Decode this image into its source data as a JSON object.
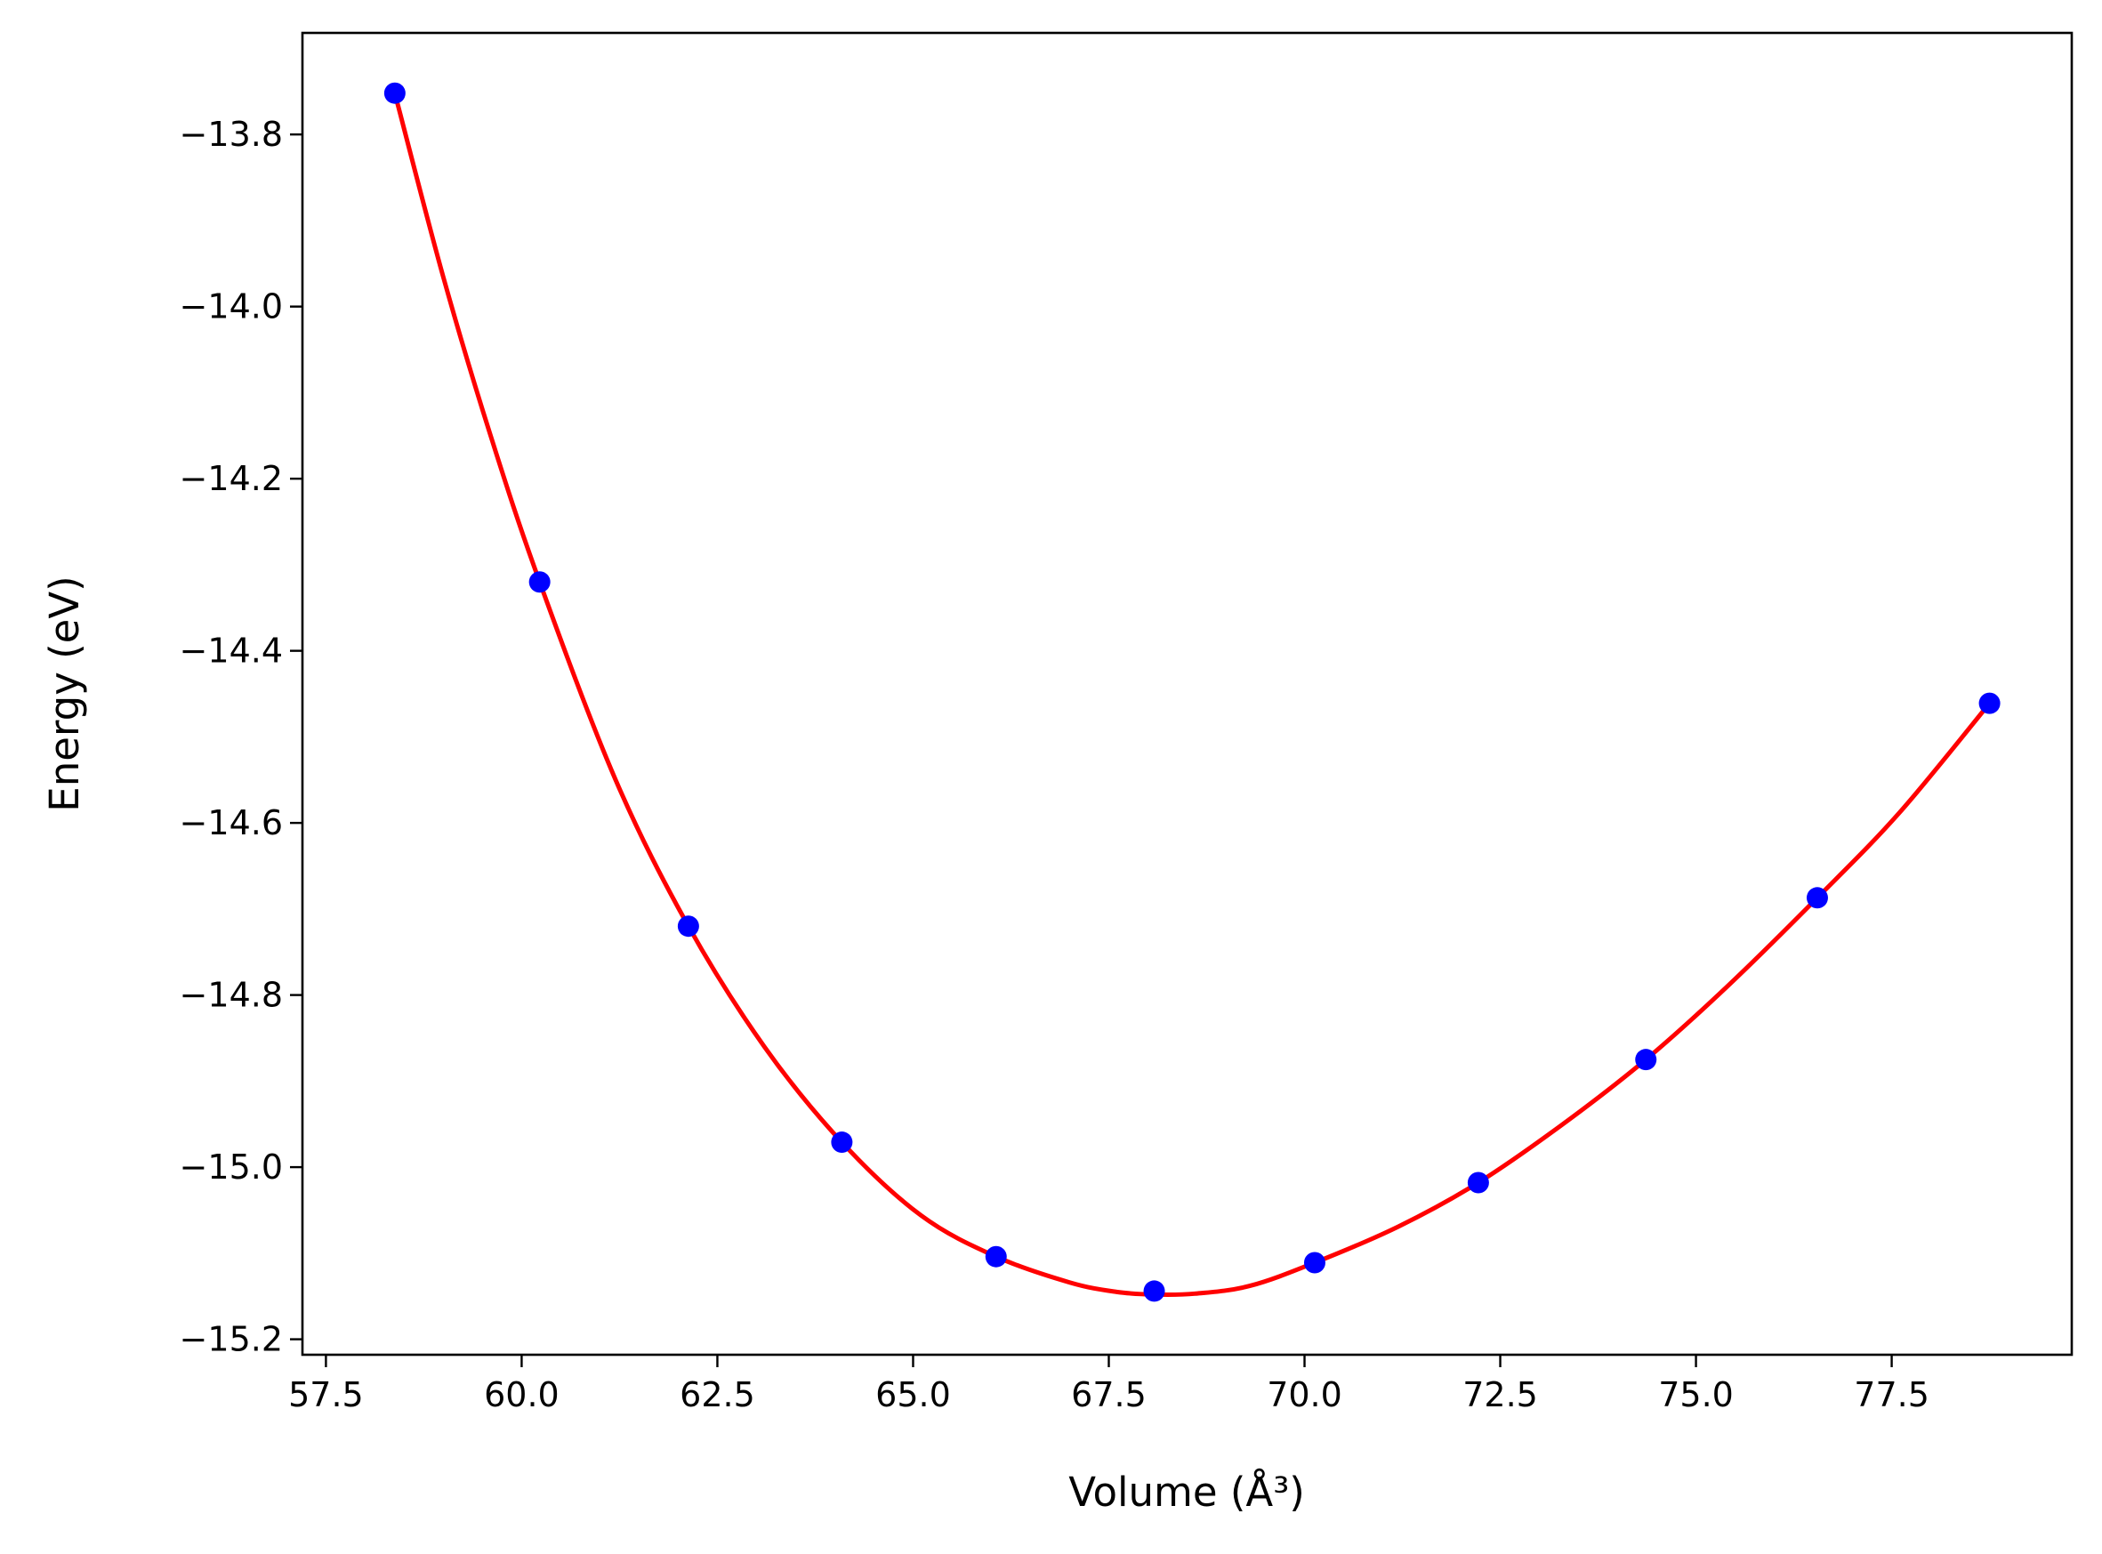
{
  "chart_data": {
    "type": "scatter",
    "title": "",
    "xlabel": "Volume (Å³)",
    "ylabel": "Energy (eV)",
    "xlim": [
      57.2,
      79.8
    ],
    "ylim": [
      -15.218,
      -13.682
    ],
    "xticks": [
      "57.5",
      "60.0",
      "62.5",
      "65.0",
      "67.5",
      "70.0",
      "72.5",
      "75.0",
      "77.5"
    ],
    "yticks": [
      "−13.8",
      "−14.0",
      "−14.2",
      "−14.4",
      "−14.6",
      "−14.8",
      "−15.0",
      "−15.2"
    ],
    "grid": false,
    "legend": "none",
    "series": [
      {
        "kind": "points",
        "color": "#0000ff",
        "x": [
          58.38,
          60.23,
          62.13,
          64.09,
          66.06,
          68.08,
          70.13,
          72.22,
          74.36,
          76.55,
          78.75
        ],
        "y": [
          -13.752,
          -14.32,
          -14.72,
          -14.971,
          -15.104,
          -15.144,
          -15.111,
          -15.018,
          -14.875,
          -14.687,
          -14.461
        ]
      },
      {
        "kind": "fit-curve",
        "color": "#ff0000",
        "x": [
          58.38,
          59.0,
          59.6,
          60.23,
          61.2,
          62.13,
          63.1,
          64.09,
          65.1,
          66.06,
          67.0,
          67.6,
          68.08,
          68.6,
          69.3,
          70.13,
          71.2,
          72.22,
          73.3,
          74.36,
          75.4,
          76.55,
          77.6,
          78.75
        ],
        "y": [
          -13.752,
          -13.966,
          -14.149,
          -14.32,
          -14.55,
          -14.72,
          -14.86,
          -14.971,
          -15.056,
          -15.104,
          -15.134,
          -15.145,
          -15.148,
          -15.147,
          -15.138,
          -15.111,
          -15.069,
          -15.018,
          -14.95,
          -14.875,
          -14.79,
          -14.687,
          -14.588,
          -14.461
        ]
      }
    ]
  }
}
